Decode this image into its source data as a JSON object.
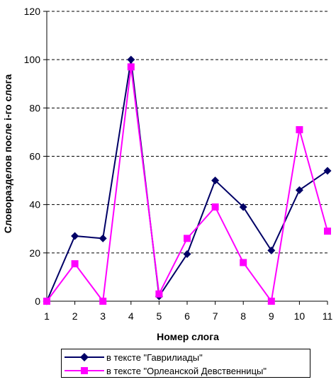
{
  "chart_data": {
    "type": "line",
    "ylabel": "Словоразделов после i-го слога",
    "xlabel": "Номер слога",
    "x": [
      1,
      2,
      3,
      4,
      5,
      6,
      7,
      8,
      9,
      10,
      11
    ],
    "ylim": [
      0,
      120
    ],
    "yticks": [
      0,
      20,
      40,
      60,
      80,
      100,
      120
    ],
    "grid": "horizontal dashed",
    "legend_position": "bottom",
    "series": [
      {
        "name": "в тексте \"Гаврилиады\"",
        "values": [
          0,
          27,
          26,
          100,
          2,
          19.5,
          50,
          39,
          21,
          46,
          54
        ],
        "color": "#000066",
        "marker": "diamond"
      },
      {
        "name": "в тексте \"Орлеанской Девственницы\"",
        "values": [
          0,
          15.5,
          0,
          97,
          3,
          26,
          39,
          16,
          0,
          71,
          29
        ],
        "color": "#FF00FF",
        "marker": "square"
      }
    ]
  }
}
